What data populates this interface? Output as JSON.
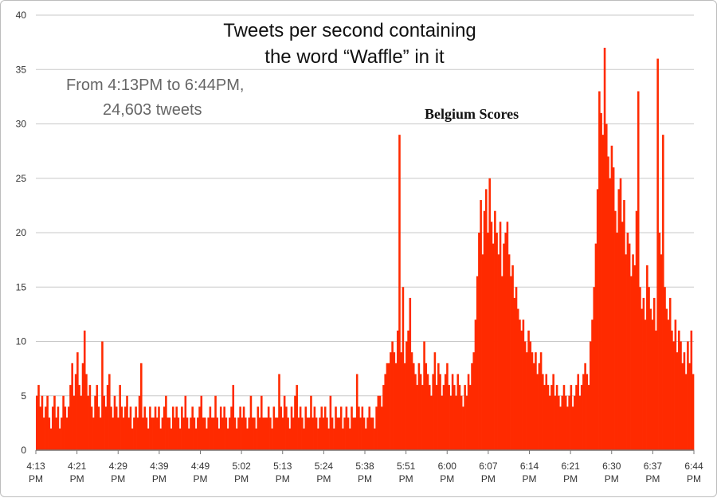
{
  "chart_data": {
    "type": "bar",
    "title_lines": [
      "Tweets per second containing",
      "the word “Waffle” in it"
    ],
    "subtitle_lines": [
      "From 4:13PM to 6:44PM,",
      "24,603 tweets"
    ],
    "annotation": "Belgium Scores",
    "ylim": [
      0,
      40
    ],
    "y_ticks": [
      0,
      5,
      10,
      15,
      20,
      25,
      30,
      35,
      40
    ],
    "x_tick_labels": [
      [
        "4:13",
        "PM"
      ],
      [
        "4:21",
        "PM"
      ],
      [
        "4:29",
        "PM"
      ],
      [
        "4:39",
        "PM"
      ],
      [
        "4:49",
        "PM"
      ],
      [
        "5:02",
        "PM"
      ],
      [
        "5:13",
        "PM"
      ],
      [
        "5:24",
        "PM"
      ],
      [
        "5:38",
        "PM"
      ],
      [
        "5:51",
        "PM"
      ],
      [
        "6:00",
        "PM"
      ],
      [
        "6:07",
        "PM"
      ],
      [
        "6:14",
        "PM"
      ],
      [
        "6:21",
        "PM"
      ],
      [
        "6:30",
        "PM"
      ],
      [
        "6:37",
        "PM"
      ],
      [
        "6:44",
        "PM"
      ]
    ],
    "grid": true,
    "bar_color": "#ff2a00",
    "values": [
      5,
      6,
      4,
      5,
      3,
      4,
      5,
      3,
      2,
      4,
      5,
      3,
      4,
      2,
      3,
      5,
      4,
      3,
      4,
      6,
      8,
      5,
      7,
      9,
      6,
      5,
      8,
      11,
      7,
      5,
      6,
      4,
      3,
      5,
      6,
      4,
      3,
      10,
      5,
      4,
      6,
      7,
      4,
      3,
      5,
      4,
      3,
      6,
      4,
      3,
      4,
      5,
      3,
      4,
      2,
      3,
      4,
      3,
      5,
      8,
      3,
      4,
      3,
      2,
      4,
      3,
      3,
      4,
      3,
      4,
      2,
      3,
      4,
      5,
      3,
      3,
      2,
      4,
      3,
      4,
      3,
      2,
      4,
      3,
      5,
      3,
      2,
      3,
      4,
      3,
      2,
      3,
      4,
      5,
      3,
      3,
      2,
      3,
      4,
      3,
      3,
      5,
      3,
      2,
      4,
      3,
      4,
      3,
      2,
      3,
      4,
      6,
      3,
      2,
      3,
      4,
      3,
      4,
      3,
      2,
      3,
      5,
      3,
      3,
      2,
      4,
      3,
      5,
      3,
      3,
      3,
      4,
      3,
      2,
      4,
      3,
      3,
      7,
      4,
      3,
      5,
      4,
      3,
      2,
      4,
      3,
      5,
      6,
      3,
      4,
      3,
      2,
      4,
      3,
      3,
      5,
      3,
      4,
      3,
      2,
      3,
      4,
      3,
      4,
      3,
      2,
      5,
      3,
      2,
      4,
      3,
      3,
      4,
      2,
      3,
      4,
      3,
      2,
      4,
      3,
      3,
      7,
      4,
      3,
      4,
      3,
      2,
      3,
      4,
      3,
      3,
      2,
      4,
      5,
      5,
      4,
      6,
      7,
      8,
      8,
      9,
      10,
      9,
      8,
      11,
      29,
      9,
      15,
      8,
      10,
      11,
      14,
      9,
      8,
      7,
      6,
      8,
      7,
      6,
      10,
      8,
      7,
      6,
      5,
      7,
      9,
      6,
      8,
      7,
      5,
      6,
      7,
      8,
      6,
      5,
      7,
      6,
      5,
      7,
      6,
      5,
      4,
      6,
      5,
      7,
      6,
      8,
      9,
      12,
      16,
      20,
      23,
      18,
      22,
      24,
      20,
      25,
      21,
      19,
      22,
      20,
      18,
      21,
      16,
      19,
      20,
      21,
      18,
      16,
      17,
      14,
      15,
      13,
      12,
      11,
      12,
      10,
      9,
      11,
      10,
      9,
      8,
      9,
      7,
      8,
      9,
      7,
      6,
      7,
      6,
      5,
      6,
      7,
      5,
      6,
      5,
      4,
      5,
      6,
      5,
      4,
      5,
      6,
      4,
      5,
      6,
      7,
      5,
      6,
      7,
      8,
      7,
      6,
      10,
      12,
      15,
      19,
      24,
      33,
      31,
      29,
      37,
      30,
      27,
      25,
      28,
      26,
      22,
      20,
      24,
      25,
      21,
      23,
      18,
      20,
      19,
      16,
      18,
      17,
      22,
      33,
      15,
      13,
      14,
      12,
      17,
      15,
      13,
      12,
      14,
      11,
      36,
      20,
      18,
      29,
      15,
      13,
      12,
      14,
      11,
      10,
      12,
      9,
      11,
      10,
      8,
      9,
      7,
      10,
      8,
      11,
      7
    ]
  }
}
